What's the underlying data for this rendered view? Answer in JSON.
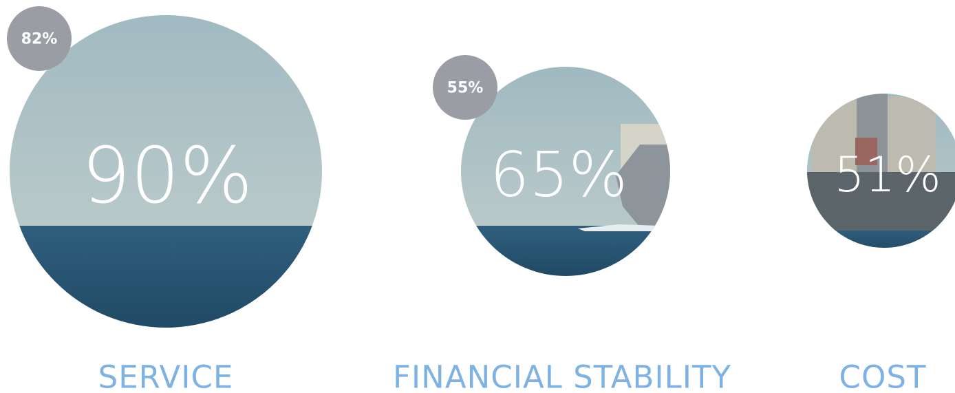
{
  "items": [
    {
      "value": "90%",
      "badge": "82%",
      "label": "SERVICE"
    },
    {
      "value": "65%",
      "badge": "55%",
      "label": "FINANCIAL STABILITY"
    },
    {
      "value": "51%",
      "label": "COST"
    }
  ]
}
